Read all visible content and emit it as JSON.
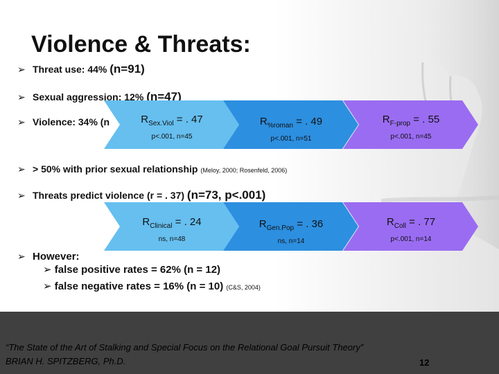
{
  "title": "Violence & Threats:",
  "bullets": {
    "b1": {
      "text": "Threat use: 44%",
      "big": "(n=91)"
    },
    "b2": {
      "text": "Sexual aggression: 12%",
      "big": "(n=47)"
    },
    "b3": {
      "text": "Violence: 34% (n"
    },
    "b4": {
      "text": "> 50% with prior sexual relationship",
      "small": "(Meloy, 2000; Rosenfeld, 2006)"
    },
    "b5": {
      "text": "Threats predict violence (r = . 37)",
      "big": "(n=73, p<.001)"
    },
    "b6": {
      "text": "However:"
    }
  },
  "subbullets": {
    "s1": "false positive rates = 62% (n = 12)",
    "s2": "false negative rates = 16% (n = 10)",
    "s2_small": "(C&S, 2004)"
  },
  "row1": [
    {
      "r": "R",
      "sub": "Sex.Viol",
      "val": " = . 47",
      "stat": "p<.001, n=45",
      "color": "#66BFEF"
    },
    {
      "r": "R",
      "sub": "%roman",
      "val": " = . 49",
      "stat": "p<.001, n=51",
      "color": "#2D8FE0"
    },
    {
      "r": "R",
      "sub": "F-prop",
      "val": " = . 55",
      "stat": "p<.001, n=45",
      "color": "#9A6CF2"
    }
  ],
  "row2": [
    {
      "r": "R",
      "sub": "Clinical",
      "val": " = . 24",
      "stat": "ns, n=48",
      "color": "#66BFEF"
    },
    {
      "r": "R",
      "sub": "Gen.Pop",
      "val": " = . 36",
      "stat": "ns, n=14",
      "color": "#2D8FE0"
    },
    {
      "r": "R",
      "sub": "Coll",
      "val": " = . 77",
      "stat": "p<.001, n=14",
      "color": "#9A6CF2"
    }
  ],
  "footer": {
    "quote": "“The State of the Art of Stalking and Special Focus on the Relational Goal Pursuit Theory”",
    "author": "BRIAN H. SPITZBERG, Ph.D.",
    "page": "12"
  },
  "icons": {
    "bullet": "arrow-bullet-icon",
    "decor": "hand-image"
  }
}
